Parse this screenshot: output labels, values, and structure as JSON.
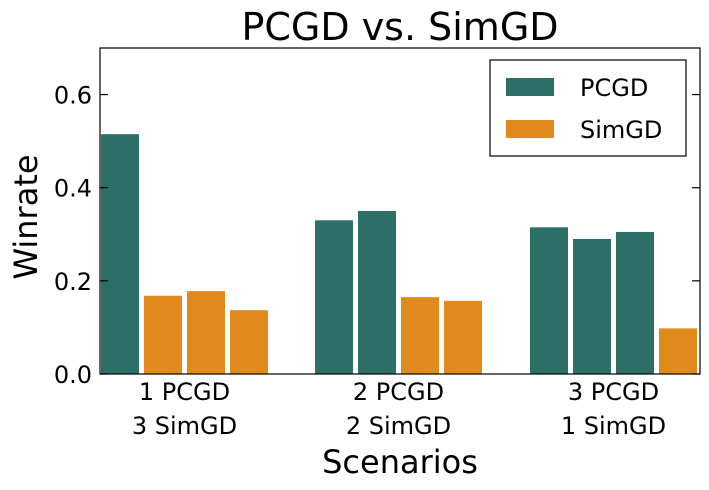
{
  "chart_data": {
    "type": "bar",
    "title": "PCGD vs. SimGD",
    "xlabel": "Scenarios",
    "ylabel": "Winrate",
    "ylim": [
      0.0,
      0.7
    ],
    "yticks": [
      0.0,
      0.2,
      0.4,
      0.6
    ],
    "ytick_labels": [
      "0.0",
      "0.2",
      "0.4",
      "0.6"
    ],
    "legend_position": "top-right",
    "series": [
      {
        "name": "PCGD",
        "color": "#2d6e66"
      },
      {
        "name": "SimGD",
        "color": "#e08a1e"
      }
    ],
    "groups": [
      {
        "label_line1": "1 PCGD",
        "label_line2": "3 SimGD",
        "bars": [
          {
            "series": "PCGD",
            "value": 0.515
          },
          {
            "series": "SimGD",
            "value": 0.168
          },
          {
            "series": "SimGD",
            "value": 0.178
          },
          {
            "series": "SimGD",
            "value": 0.137
          }
        ]
      },
      {
        "label_line1": "2 PCGD",
        "label_line2": "2 SimGD",
        "bars": [
          {
            "series": "PCGD",
            "value": 0.33
          },
          {
            "series": "PCGD",
            "value": 0.35
          },
          {
            "series": "SimGD",
            "value": 0.165
          },
          {
            "series": "SimGD",
            "value": 0.157
          }
        ]
      },
      {
        "label_line1": "3 PCGD",
        "label_line2": "1 SimGD",
        "bars": [
          {
            "series": "PCGD",
            "value": 0.315
          },
          {
            "series": "PCGD",
            "value": 0.29
          },
          {
            "series": "PCGD",
            "value": 0.305
          },
          {
            "series": "SimGD",
            "value": 0.098
          }
        ]
      }
    ]
  }
}
